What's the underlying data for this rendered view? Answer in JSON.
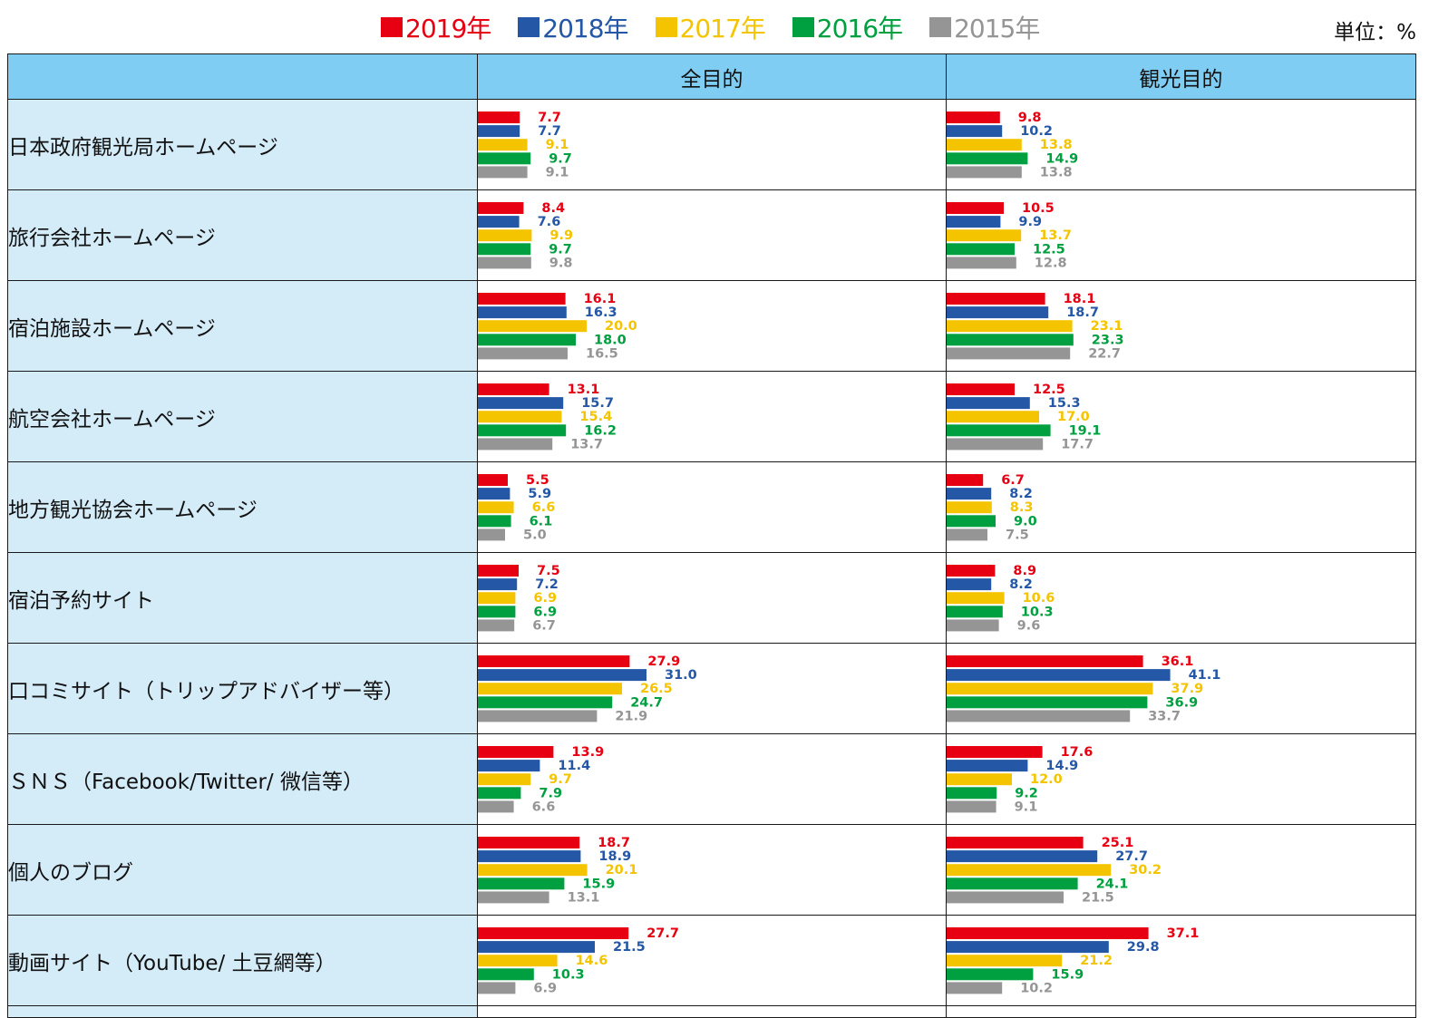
{
  "unit_label": "単位：%",
  "columns": {
    "all": "全目的",
    "tourism": "観光目的"
  },
  "chart_data": {
    "type": "bar",
    "orientation": "horizontal",
    "unit": "%",
    "xlim": [
      0,
      60
    ],
    "legend_position": "top",
    "series": [
      {
        "name": "2019年",
        "color": "#e60012"
      },
      {
        "name": "2018年",
        "color": "#2457a6"
      },
      {
        "name": "2017年",
        "color": "#f5c400"
      },
      {
        "name": "2016年",
        "color": "#00a040"
      },
      {
        "name": "2015年",
        "color": "#959595"
      }
    ],
    "categories": [
      {
        "label": "日本政府観光局ホームページ",
        "all": [
          7.7,
          7.7,
          9.1,
          9.7,
          9.1
        ],
        "tourism": [
          9.8,
          10.2,
          13.8,
          14.9,
          13.8
        ]
      },
      {
        "label": "旅行会社ホームページ",
        "all": [
          8.4,
          7.6,
          9.9,
          9.7,
          9.8
        ],
        "tourism": [
          10.5,
          9.9,
          13.7,
          12.5,
          12.8
        ]
      },
      {
        "label": "宿泊施設ホームページ",
        "all": [
          16.1,
          16.3,
          20.0,
          18.0,
          16.5
        ],
        "tourism": [
          18.1,
          18.7,
          23.1,
          23.3,
          22.7
        ]
      },
      {
        "label": "航空会社ホームページ",
        "all": [
          13.1,
          15.7,
          15.4,
          16.2,
          13.7
        ],
        "tourism": [
          12.5,
          15.3,
          17.0,
          19.1,
          17.7
        ]
      },
      {
        "label": "地方観光協会ホームページ",
        "all": [
          5.5,
          5.9,
          6.6,
          6.1,
          5.0
        ],
        "tourism": [
          6.7,
          8.2,
          8.3,
          9.0,
          7.5
        ]
      },
      {
        "label": "宿泊予約サイト",
        "all": [
          7.5,
          7.2,
          6.9,
          6.9,
          6.7
        ],
        "tourism": [
          8.9,
          8.2,
          10.6,
          10.3,
          9.6
        ]
      },
      {
        "label": "口コミサイト（トリップアドバイザー等）",
        "all": [
          27.9,
          31.0,
          26.5,
          24.7,
          21.9
        ],
        "tourism": [
          36.1,
          41.1,
          37.9,
          36.9,
          33.7
        ]
      },
      {
        "label": "ＳＮＳ（Facebook/Twitter/ 微信等）",
        "all": [
          13.9,
          11.4,
          9.7,
          7.9,
          6.6
        ],
        "tourism": [
          17.6,
          14.9,
          12.0,
          9.2,
          9.1
        ]
      },
      {
        "label": "個人のブログ",
        "all": [
          18.7,
          18.9,
          20.1,
          15.9,
          13.1
        ],
        "tourism": [
          25.1,
          27.7,
          30.2,
          24.1,
          21.5
        ]
      },
      {
        "label": "動画サイト（YouTube/ 土豆網等）",
        "all": [
          27.7,
          21.5,
          14.6,
          10.3,
          6.9
        ],
        "tourism": [
          37.1,
          29.8,
          21.2,
          15.9,
          10.2
        ]
      }
    ]
  }
}
